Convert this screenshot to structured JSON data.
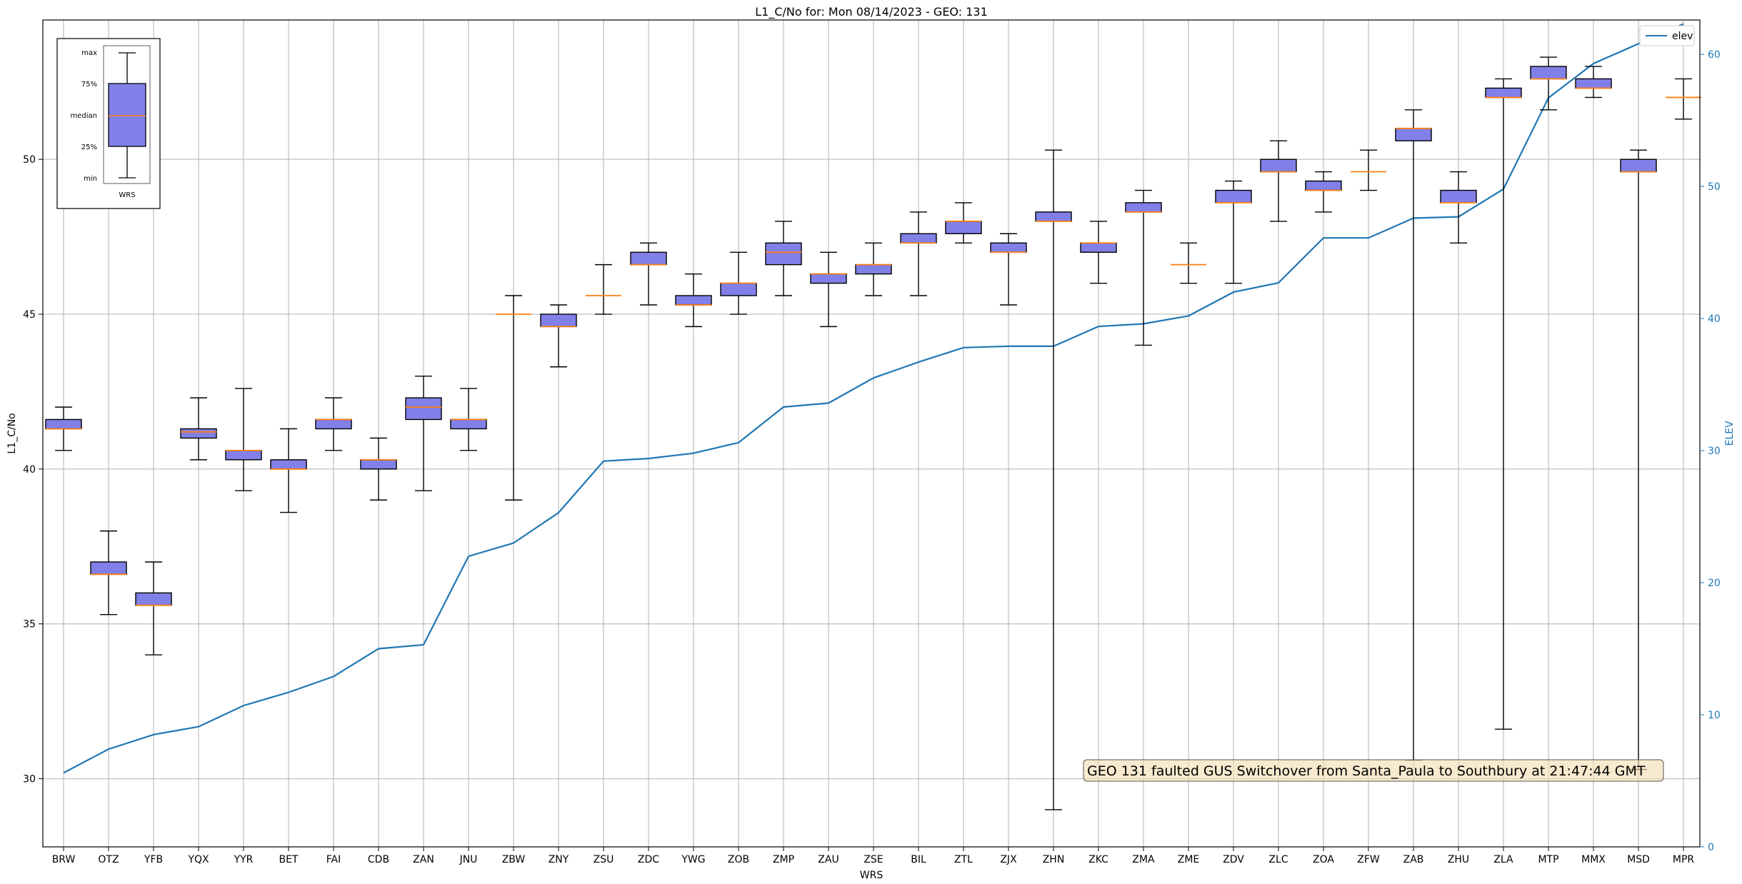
{
  "chart_data": {
    "type": "box",
    "title": "L1_C/No for: Mon 08/14/2023 - GEO: 131",
    "xlabel": "WRS",
    "ylabel": "L1_C/No",
    "y2label": "ELEV",
    "ylim": [
      27.8,
      54.5
    ],
    "y2lim": [
      0,
      62.6
    ],
    "yticks": [
      30,
      35,
      40,
      45,
      50
    ],
    "y2ticks": [
      0,
      10,
      20,
      30,
      40,
      50,
      60
    ],
    "grid": true,
    "legend": {
      "position": "top-right",
      "entries": [
        {
          "label": "elev",
          "color": "#1f77b4"
        }
      ]
    },
    "box_color": "#8080e8",
    "median_color": "#ff7f0e",
    "line_color": "#1f77b4",
    "annotation": "GEO 131 faulted GUS Switchover from Santa_Paula to Southbury at 21:47:44 GMT",
    "inset_legend": {
      "labels": [
        "max",
        "75%",
        "median",
        "25%",
        "min"
      ],
      "xlabel": "WRS"
    },
    "stations": [
      {
        "name": "BRW",
        "min": 40.6,
        "q1": 41.3,
        "median": 41.3,
        "q3": 41.6,
        "max": 42.0,
        "elev": 5.6
      },
      {
        "name": "OTZ",
        "min": 35.3,
        "q1": 36.6,
        "median": 36.6,
        "q3": 37.0,
        "max": 38.0,
        "elev": 7.4
      },
      {
        "name": "YFB",
        "min": 34.0,
        "q1": 35.6,
        "median": 35.6,
        "q3": 36.0,
        "max": 37.0,
        "elev": 8.5
      },
      {
        "name": "YQX",
        "min": 40.3,
        "q1": 41.0,
        "median": 41.2,
        "q3": 41.3,
        "max": 42.3,
        "elev": 9.1
      },
      {
        "name": "YYR",
        "min": 39.3,
        "q1": 40.3,
        "median": 40.6,
        "q3": 40.6,
        "max": 42.6,
        "elev": 10.7
      },
      {
        "name": "BET",
        "min": 38.6,
        "q1": 40.0,
        "median": 40.0,
        "q3": 40.3,
        "max": 41.3,
        "elev": 11.7
      },
      {
        "name": "FAI",
        "min": 40.6,
        "q1": 41.3,
        "median": 41.6,
        "q3": 41.6,
        "max": 42.3,
        "elev": 12.9
      },
      {
        "name": "CDB",
        "min": 39.0,
        "q1": 40.0,
        "median": 40.3,
        "q3": 40.3,
        "max": 41.0,
        "elev": 15.0
      },
      {
        "name": "ZAN",
        "min": 39.3,
        "q1": 41.6,
        "median": 42.0,
        "q3": 42.3,
        "max": 43.0,
        "elev": 15.3
      },
      {
        "name": "JNU",
        "min": 40.6,
        "q1": 41.3,
        "median": 41.6,
        "q3": 41.6,
        "max": 42.6,
        "elev": 22.0
      },
      {
        "name": "ZBW",
        "min": 39.0,
        "q1": 45.0,
        "median": 45.0,
        "q3": 45.0,
        "max": 45.6,
        "elev": 23.0
      },
      {
        "name": "ZNY",
        "min": 43.3,
        "q1": 44.6,
        "median": 44.6,
        "q3": 45.0,
        "max": 45.3,
        "elev": 25.3
      },
      {
        "name": "ZSU",
        "min": 45.0,
        "q1": 45.6,
        "median": 45.6,
        "q3": 45.6,
        "max": 46.6,
        "elev": 29.2
      },
      {
        "name": "ZDC",
        "min": 45.3,
        "q1": 46.6,
        "median": 46.6,
        "q3": 47.0,
        "max": 47.3,
        "elev": 29.4
      },
      {
        "name": "YWG",
        "min": 44.6,
        "q1": 45.3,
        "median": 45.3,
        "q3": 45.6,
        "max": 46.3,
        "elev": 29.8
      },
      {
        "name": "ZOB",
        "min": 45.0,
        "q1": 45.6,
        "median": 46.0,
        "q3": 46.0,
        "max": 47.0,
        "elev": 30.6
      },
      {
        "name": "ZMP",
        "min": 45.6,
        "q1": 46.6,
        "median": 47.0,
        "q3": 47.3,
        "max": 48.0,
        "elev": 33.3
      },
      {
        "name": "ZAU",
        "min": 44.6,
        "q1": 46.0,
        "median": 46.3,
        "q3": 46.3,
        "max": 47.0,
        "elev": 33.6
      },
      {
        "name": "ZSE",
        "min": 45.6,
        "q1": 46.3,
        "median": 46.6,
        "q3": 46.6,
        "max": 47.3,
        "elev": 35.5
      },
      {
        "name": "BIL",
        "min": 45.6,
        "q1": 47.3,
        "median": 47.3,
        "q3": 47.6,
        "max": 48.3,
        "elev": 36.7
      },
      {
        "name": "ZTL",
        "min": 47.3,
        "q1": 47.6,
        "median": 48.0,
        "q3": 48.0,
        "max": 48.6,
        "elev": 37.8
      },
      {
        "name": "ZJX",
        "min": 45.3,
        "q1": 47.0,
        "median": 47.0,
        "q3": 47.3,
        "max": 47.6,
        "elev": 37.9
      },
      {
        "name": "ZHN",
        "min": 29.0,
        "q1": 48.0,
        "median": 48.0,
        "q3": 48.3,
        "max": 50.3,
        "elev": 37.9
      },
      {
        "name": "ZKC",
        "min": 46.0,
        "q1": 47.0,
        "median": 47.3,
        "q3": 47.3,
        "max": 48.0,
        "elev": 39.4
      },
      {
        "name": "ZMA",
        "min": 44.0,
        "q1": 48.3,
        "median": 48.3,
        "q3": 48.6,
        "max": 49.0,
        "elev": 39.6
      },
      {
        "name": "ZME",
        "min": 46.0,
        "q1": 46.6,
        "median": 46.6,
        "q3": 46.6,
        "max": 47.3,
        "elev": 40.2
      },
      {
        "name": "ZDV",
        "min": 46.0,
        "q1": 48.6,
        "median": 48.6,
        "q3": 49.0,
        "max": 49.3,
        "elev": 42.0
      },
      {
        "name": "ZLC",
        "min": 48.0,
        "q1": 49.6,
        "median": 49.6,
        "q3": 50.0,
        "max": 50.6,
        "elev": 42.7
      },
      {
        "name": "ZOA",
        "min": 48.3,
        "q1": 49.0,
        "median": 49.0,
        "q3": 49.3,
        "max": 49.6,
        "elev": 46.1
      },
      {
        "name": "ZFW",
        "min": 49.0,
        "q1": 49.6,
        "median": 49.6,
        "q3": 49.6,
        "max": 50.3,
        "elev": 46.1
      },
      {
        "name": "ZAB",
        "min": 30.6,
        "q1": 50.6,
        "median": 51.0,
        "q3": 51.0,
        "max": 51.6,
        "elev": 47.6
      },
      {
        "name": "ZHU",
        "min": 47.3,
        "q1": 48.6,
        "median": 48.6,
        "q3": 49.0,
        "max": 49.6,
        "elev": 47.7
      },
      {
        "name": "ZLA",
        "min": 31.6,
        "q1": 52.0,
        "median": 52.0,
        "q3": 52.3,
        "max": 52.6,
        "elev": 49.8
      },
      {
        "name": "MTP",
        "min": 51.6,
        "q1": 52.6,
        "median": 52.6,
        "q3": 53.0,
        "max": 53.3,
        "elev": 56.7
      },
      {
        "name": "MMX",
        "min": 52.0,
        "q1": 52.3,
        "median": 52.3,
        "q3": 52.6,
        "max": 53.0,
        "elev": 59.3
      },
      {
        "name": "MSD",
        "min": 30.3,
        "q1": 49.6,
        "median": 49.6,
        "q3": 50.0,
        "max": 50.3,
        "elev": 60.8
      },
      {
        "name": "MPR",
        "min": 51.3,
        "q1": 52.0,
        "median": 52.0,
        "q3": 52.0,
        "max": 52.6,
        "elev": 62.3
      }
    ]
  }
}
